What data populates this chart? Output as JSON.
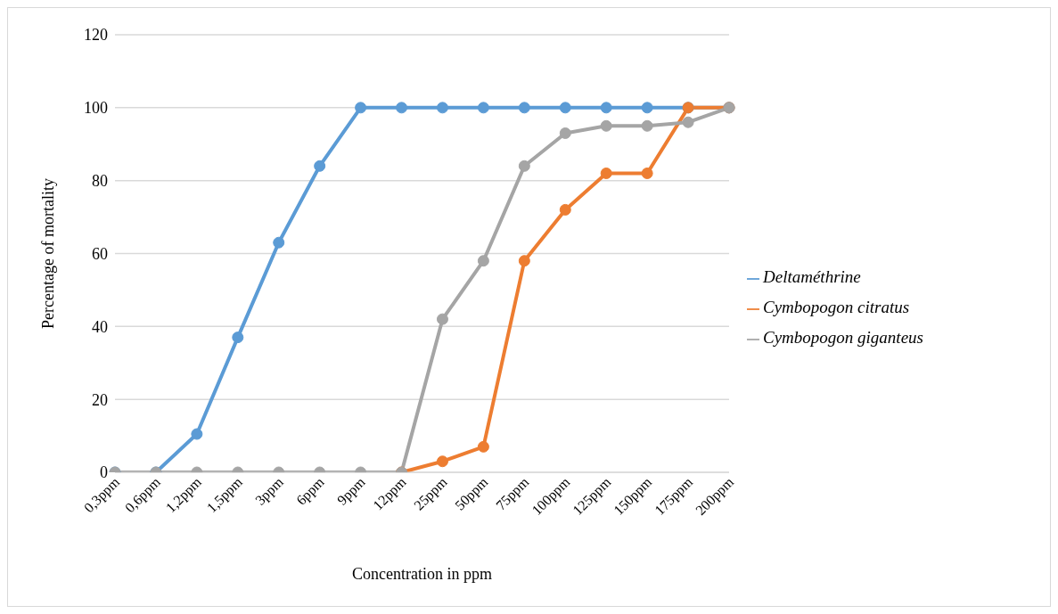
{
  "chart_data": {
    "type": "line",
    "xlabel": "Concentration in ppm",
    "ylabel": "Percentage of mortality",
    "categories": [
      "0,3ppm",
      "0,6ppm",
      "1,2ppm",
      "1,5ppm",
      "3ppm",
      "6ppm",
      "9ppm",
      "12ppm",
      "25ppm",
      "50ppm",
      "75ppm",
      "100ppm",
      "125ppm",
      "150ppm",
      "175ppm",
      "200ppm"
    ],
    "series": [
      {
        "name": "Deltaméthrine",
        "color": "#5b9bd5",
        "values": [
          0,
          0,
          10.5,
          37,
          63,
          84,
          100,
          100,
          100,
          100,
          100,
          100,
          100,
          100,
          100,
          100
        ]
      },
      {
        "name": "Cymbopogon citratus",
        "color": "#ed7d31",
        "values": [
          null,
          null,
          null,
          null,
          null,
          null,
          null,
          0,
          3,
          7,
          58,
          72,
          82,
          82,
          100,
          100
        ]
      },
      {
        "name": "Cymbopogon giganteus",
        "color": "#a5a5a5",
        "values": [
          0,
          0,
          0,
          0,
          0,
          0,
          0,
          0,
          42,
          58,
          84,
          93,
          95,
          95,
          96,
          100
        ]
      }
    ],
    "ylim": [
      0,
      120
    ],
    "yticks": [
      0,
      20,
      40,
      60,
      80,
      100,
      120
    ],
    "grid": "y",
    "legend": "right",
    "marker": "circle",
    "line_style": "solid"
  }
}
